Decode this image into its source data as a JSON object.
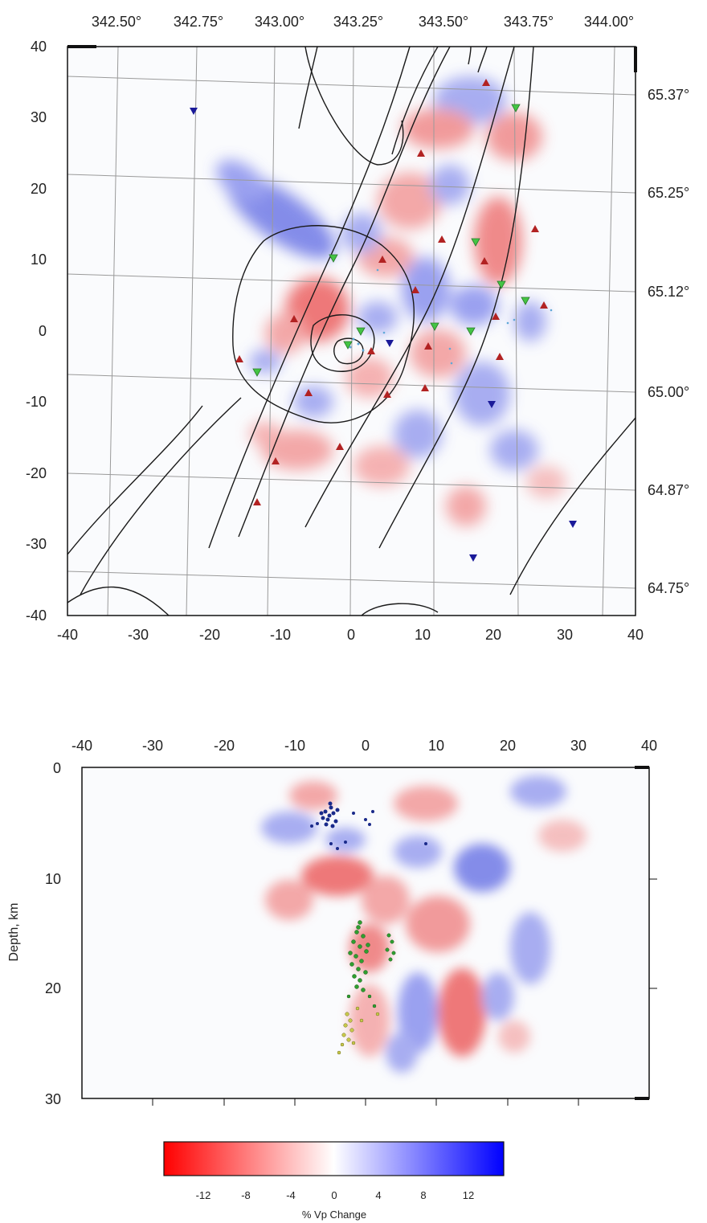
{
  "map_view": {
    "x_range": [
      -40,
      40
    ],
    "y_range": [
      -40,
      40
    ],
    "x_ticks": [
      "-40",
      "-30",
      "-20",
      "-10",
      "0",
      "10",
      "20",
      "30",
      "40"
    ],
    "y_ticks": [
      "40",
      "30",
      "20",
      "10",
      "0",
      "-10",
      "-20",
      "-30",
      "-40"
    ],
    "lon_labels": [
      "342.50°",
      "342.75°",
      "343.00°",
      "343.25°",
      "343.50°",
      "343.75°",
      "344.00°"
    ],
    "lat_labels": [
      "65.37°",
      "65.25°",
      "65.12°",
      "65.00°",
      "64.87°",
      "64.75°"
    ]
  },
  "depth_section": {
    "x_ticks": [
      "-40",
      "-30",
      "-20",
      "-10",
      "0",
      "10",
      "20",
      "30",
      "40"
    ],
    "y_ticks": [
      "0",
      "10",
      "20",
      "30"
    ],
    "ylabel": "Depth, km"
  },
  "colorbar": {
    "ticks": [
      "-12",
      "-8",
      "-4",
      "0",
      "4",
      "8",
      "12"
    ],
    "label": "% Vp Change",
    "colors": {
      "low": "#ff0000",
      "mid": "#ffffff",
      "high": "#0000ff"
    }
  },
  "station_colors": {
    "red_up": "#b22222",
    "green_down": "#3cb83c",
    "blue_down": "#1a1a99"
  }
}
